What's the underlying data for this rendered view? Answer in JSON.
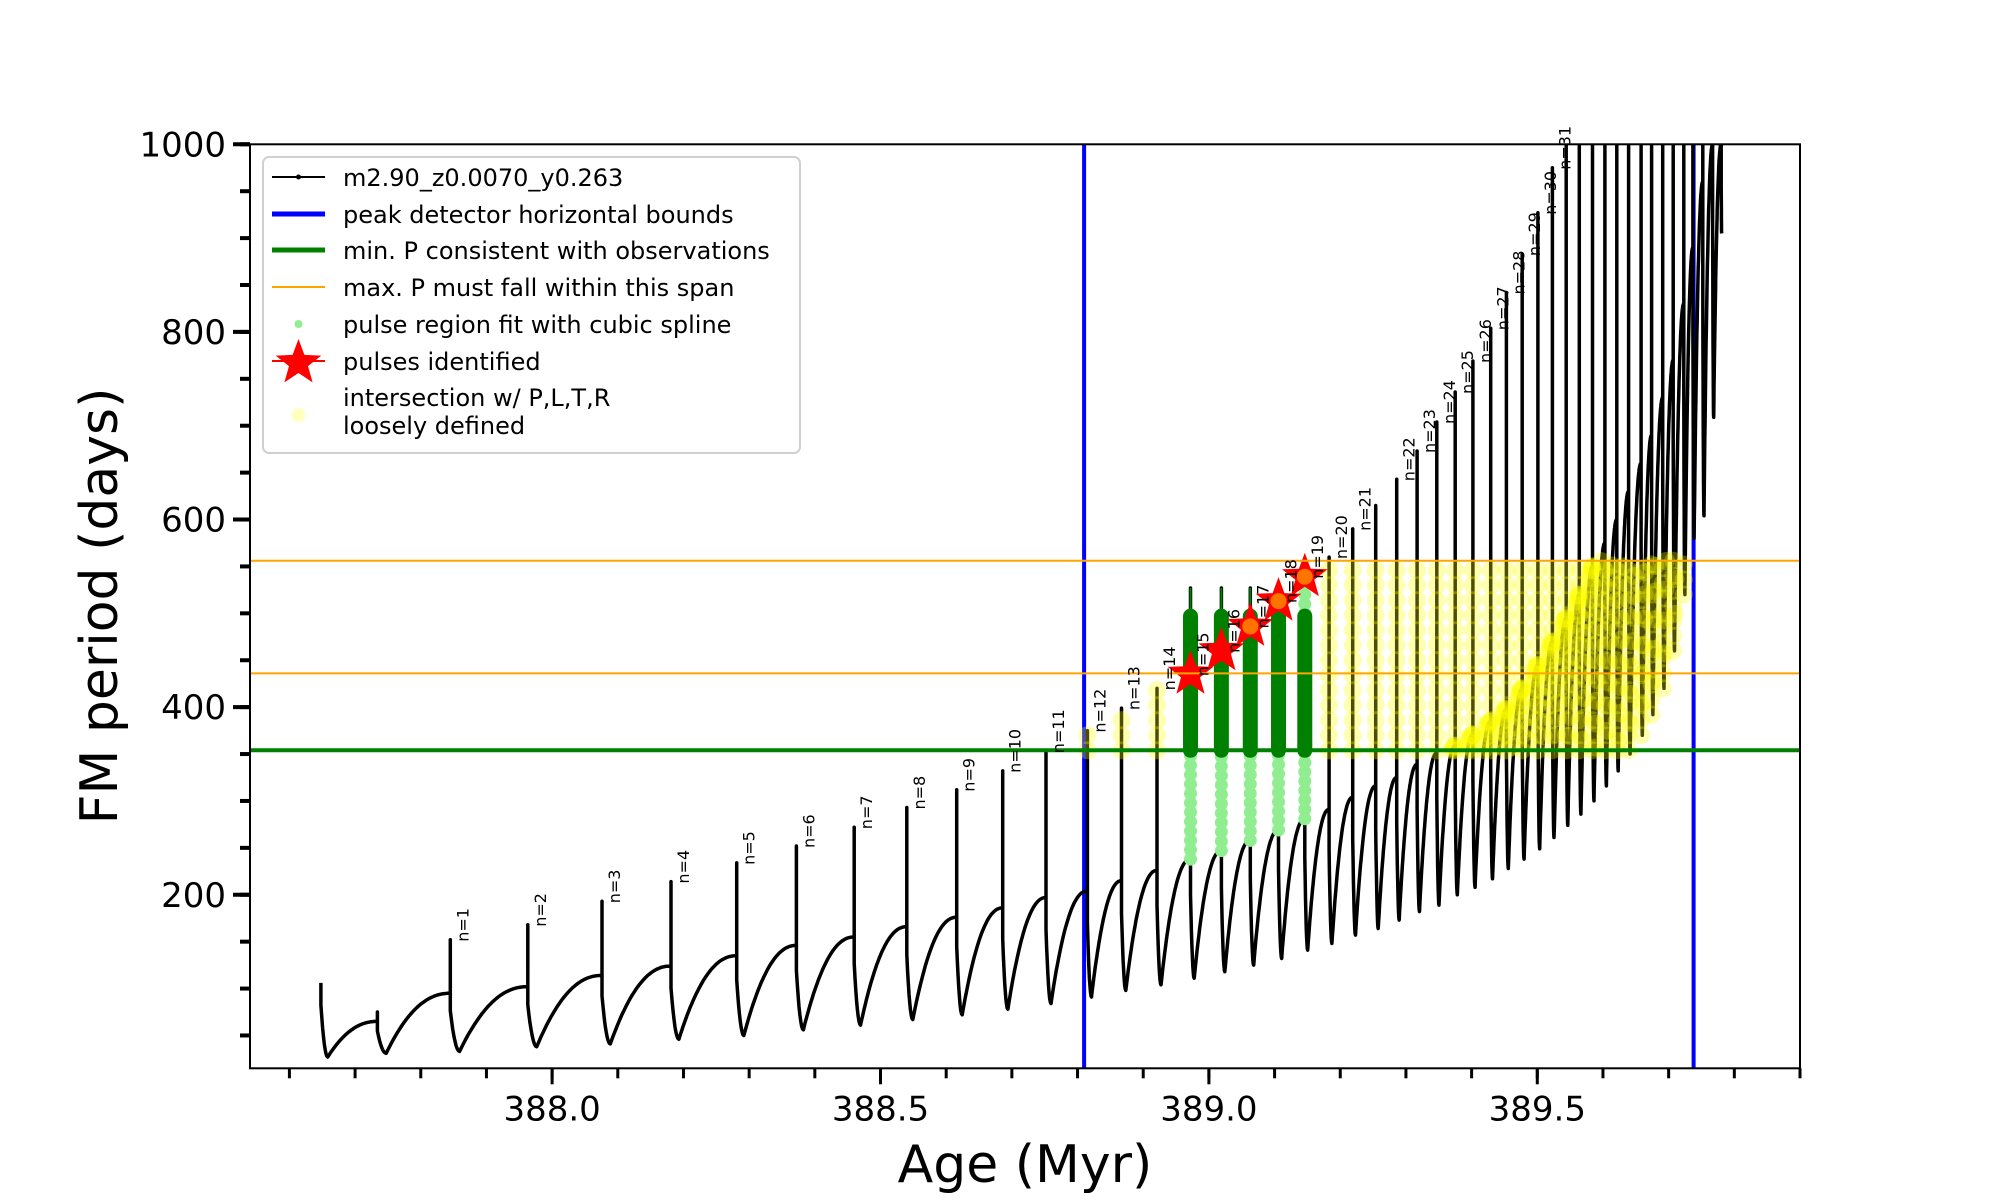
{
  "chart_data": {
    "type": "line",
    "title": "",
    "xlabel": "Age (Myr)",
    "ylabel": "FM period (days)",
    "xlim": [
      387.54,
      389.9
    ],
    "ylim": [
      15,
      1000
    ],
    "grid": false,
    "xticks_major": [
      {
        "value": 388.0,
        "label": "388.0"
      },
      {
        "value": 388.5,
        "label": "388.5"
      },
      {
        "value": 389.0,
        "label": "389.0"
      },
      {
        "value": 389.5,
        "label": "389.5"
      }
    ],
    "xticks_minor_step": 0.1,
    "yticks_major": [
      {
        "value": 200,
        "label": "200"
      },
      {
        "value": 400,
        "label": "400"
      },
      {
        "value": 600,
        "label": "600"
      },
      {
        "value": 800,
        "label": "800"
      },
      {
        "value": 1000,
        "label": "1000"
      }
    ],
    "yticks_minor_step": 50,
    "series_name": "m2.90_z0.0070_y0.263",
    "pulses": [
      {
        "label": null,
        "age": 387.648,
        "pre": 106,
        "peak": 106,
        "min": 27
      },
      {
        "label": null,
        "age": 387.734,
        "pre": 65,
        "peak": 75,
        "min": 31
      },
      {
        "label": "n=1",
        "age": 387.845,
        "pre": 95,
        "peak": 152,
        "min": 33
      },
      {
        "label": "n=2",
        "age": 387.963,
        "pre": 102,
        "peak": 168,
        "min": 38
      },
      {
        "label": "n=3",
        "age": 388.076,
        "pre": 114,
        "peak": 193,
        "min": 41
      },
      {
        "label": "n=4",
        "age": 388.181,
        "pre": 124,
        "peak": 214,
        "min": 46
      },
      {
        "label": "n=5",
        "age": 388.281,
        "pre": 135,
        "peak": 234,
        "min": 50
      },
      {
        "label": "n=6",
        "age": 388.372,
        "pre": 146,
        "peak": 252,
        "min": 56
      },
      {
        "label": "n=7",
        "age": 388.46,
        "pre": 155,
        "peak": 272,
        "min": 61
      },
      {
        "label": "n=8",
        "age": 388.54,
        "pre": 166,
        "peak": 293,
        "min": 67
      },
      {
        "label": "n=9",
        "age": 388.616,
        "pre": 176,
        "peak": 312,
        "min": 72
      },
      {
        "label": "n=10",
        "age": 388.686,
        "pre": 186,
        "peak": 332,
        "min": 78
      },
      {
        "label": "n=11",
        "age": 388.752,
        "pre": 197,
        "peak": 353,
        "min": 84
      },
      {
        "label": "n=12",
        "age": 388.815,
        "pre": 204,
        "peak": 375,
        "min": 91
      },
      {
        "label": "n=13",
        "age": 388.867,
        "pre": 215,
        "peak": 399,
        "min": 98
      },
      {
        "label": "n=14",
        "age": 388.921,
        "pre": 226,
        "peak": 420,
        "min": 104
      },
      {
        "label": "n=15",
        "age": 388.972,
        "pre": 238,
        "peak": 527,
        "min": 111
      },
      {
        "label": "n=16",
        "age": 389.019,
        "pre": 247,
        "peak": 527,
        "min": 118
      },
      {
        "label": "n=17",
        "age": 389.063,
        "pre": 258,
        "peak": 527,
        "min": 125
      },
      {
        "label": "n=18",
        "age": 389.106,
        "pre": 269,
        "peak": 515,
        "min": 132
      },
      {
        "label": "n=19",
        "age": 389.146,
        "pre": 281,
        "peak": 541,
        "min": 141
      },
      {
        "label": "n=20",
        "age": 389.183,
        "pre": 291,
        "peak": 560,
        "min": 148
      },
      {
        "label": "n=21",
        "age": 389.219,
        "pre": 304,
        "peak": 590,
        "min": 157
      },
      {
        "label": null,
        "age": 389.254,
        "pre": 316,
        "peak": 615,
        "min": 164
      },
      {
        "label": "n=22",
        "age": 389.286,
        "pre": 325,
        "peak": 643,
        "min": 173
      },
      {
        "label": "n=23",
        "age": 389.317,
        "pre": 339,
        "peak": 673,
        "min": 182
      },
      {
        "label": "n=24",
        "age": 389.347,
        "pre": 351,
        "peak": 704,
        "min": 189
      },
      {
        "label": "n=25",
        "age": 389.375,
        "pre": 359,
        "peak": 736,
        "min": 200
      },
      {
        "label": "n=26",
        "age": 389.402,
        "pre": 371,
        "peak": 769,
        "min": 208
      },
      {
        "label": "n=27",
        "age": 389.429,
        "pre": 385,
        "peak": 804,
        "min": 217
      },
      {
        "label": "n=28",
        "age": 389.453,
        "pre": 398,
        "peak": 842,
        "min": 228
      },
      {
        "label": "n=29",
        "age": 389.477,
        "pre": 420,
        "peak": 883,
        "min": 238
      },
      {
        "label": "n=30",
        "age": 389.501,
        "pre": 445,
        "peak": 927,
        "min": 249
      },
      {
        "label": "n=31",
        "age": 389.523,
        "pre": 470,
        "peak": 975,
        "min": 261
      },
      {
        "label": null,
        "age": 389.544,
        "pre": 495,
        "peak": 1100,
        "min": 274
      },
      {
        "label": null,
        "age": 389.564,
        "pre": 520,
        "peak": 1100,
        "min": 286
      },
      {
        "label": null,
        "age": 389.584,
        "pre": 550,
        "peak": 1100,
        "min": 300
      },
      {
        "label": null,
        "age": 389.603,
        "pre": 575,
        "peak": 1100,
        "min": 316
      },
      {
        "label": null,
        "age": 389.621,
        "pre": 600,
        "peak": 1100,
        "min": 332
      },
      {
        "label": null,
        "age": 389.639,
        "pre": 630,
        "peak": 1100,
        "min": 350
      },
      {
        "label": null,
        "age": 389.658,
        "pre": 660,
        "peak": 1100,
        "min": 370
      },
      {
        "label": null,
        "age": 389.674,
        "pre": 690,
        "peak": 1100,
        "min": 392
      },
      {
        "label": null,
        "age": 389.691,
        "pre": 730,
        "peak": 1100,
        "min": 420
      },
      {
        "label": null,
        "age": 389.707,
        "pre": 770,
        "peak": 1100,
        "min": 460
      },
      {
        "label": null,
        "age": 389.723,
        "pre": 830,
        "peak": 1100,
        "min": 520
      },
      {
        "label": null,
        "age": 389.737,
        "pre": 890,
        "peak": 1100,
        "min": 580
      },
      {
        "label": null,
        "age": 389.752,
        "pre": 960,
        "peak": 1100,
        "min": 604
      },
      {
        "label": null,
        "age": 389.767,
        "pre": 1000,
        "peak": 1100,
        "min": 709
      },
      {
        "label": null,
        "age": 389.78,
        "pre": 1000,
        "peak": 1100,
        "min": 905
      }
    ],
    "peak_detector_bounds": [
      388.81,
      389.738
    ],
    "min_period_observed": 354,
    "max_period_span": [
      436,
      556
    ],
    "spline_fit_top": 497,
    "pulses_identified": [
      {
        "n": 15,
        "age": 388.972,
        "period": 435
      },
      {
        "n": 16,
        "age": 389.019,
        "period": 460
      },
      {
        "n": 17,
        "age": 389.063,
        "period": 486
      },
      {
        "n": 18,
        "age": 389.106,
        "period": 513
      },
      {
        "n": 19,
        "age": 389.146,
        "period": 539
      }
    ],
    "legend": {
      "position": "upper-left",
      "entries": [
        {
          "label": "m2.90_z0.0070_y0.263"
        },
        {
          "label": "peak detector horizontal bounds"
        },
        {
          "label": "min. P consistent with observations"
        },
        {
          "label": "max. P must fall within this span"
        },
        {
          "label": "pulse region fit with cubic spline"
        },
        {
          "label": "pulses identified"
        },
        {
          "lines": [
            "intersection w/ P,L,T,R",
            "loosely defined"
          ]
        }
      ]
    }
  },
  "colors": {
    "track": "#000000",
    "bounds": "#0000ff",
    "min_period": "#008000",
    "max_span": "#ffa500",
    "spline": "#90ee90",
    "spline_dark": "#008000",
    "star": "#ff0000",
    "intersection": "#ffff00"
  }
}
